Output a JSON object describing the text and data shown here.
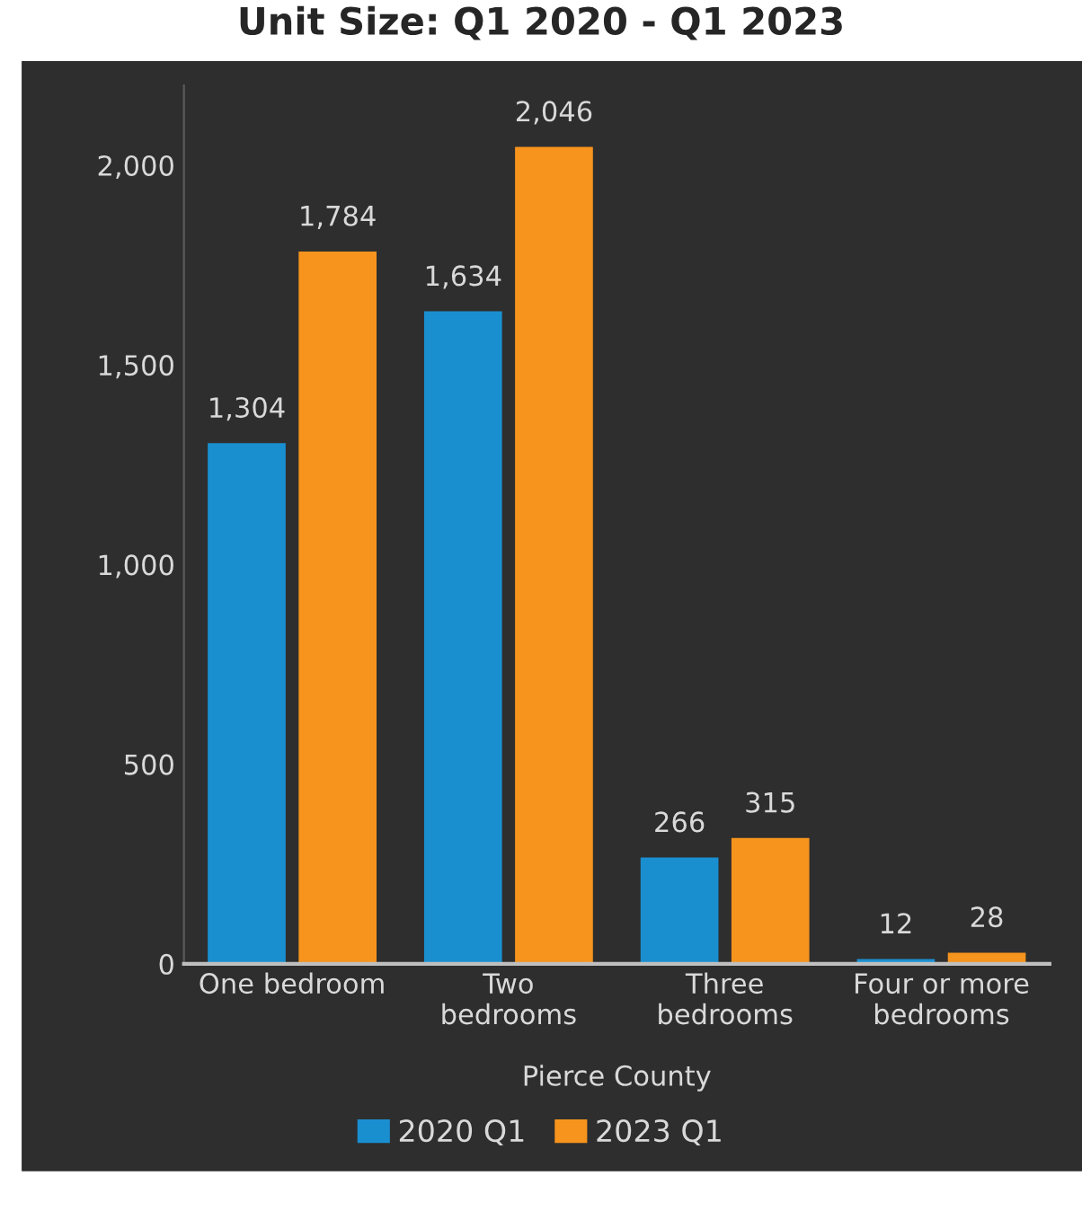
{
  "chart_data": {
    "type": "bar",
    "title": "Unit Size: Q1 2020 - Q1 2023",
    "xlabel": "Pierce County",
    "categories": [
      "One bedroom",
      "Two\nbedrooms",
      "Three\nbedrooms",
      "Four or more\nbedrooms"
    ],
    "series": [
      {
        "name": "2020 Q1",
        "color": "#1a8fd0",
        "values": [
          1304,
          1634,
          266,
          12
        ],
        "value_labels": [
          "1,304",
          "1,634",
          "266",
          "12"
        ]
      },
      {
        "name": "2023 Q1",
        "color": "#f7941d",
        "values": [
          1784,
          2046,
          315,
          28
        ],
        "value_labels": [
          "1,784",
          "2,046",
          "315",
          "28"
        ]
      }
    ],
    "ylim": [
      0,
      2200
    ],
    "yticks": [
      0,
      {
        "value": 500,
        "label": "500"
      },
      {
        "value": 1000,
        "label": "1,000"
      },
      {
        "value": 1500,
        "label": "1,500"
      },
      {
        "value": 2000,
        "label": "2,000"
      }
    ],
    "grid": false,
    "legend": "bottom"
  }
}
